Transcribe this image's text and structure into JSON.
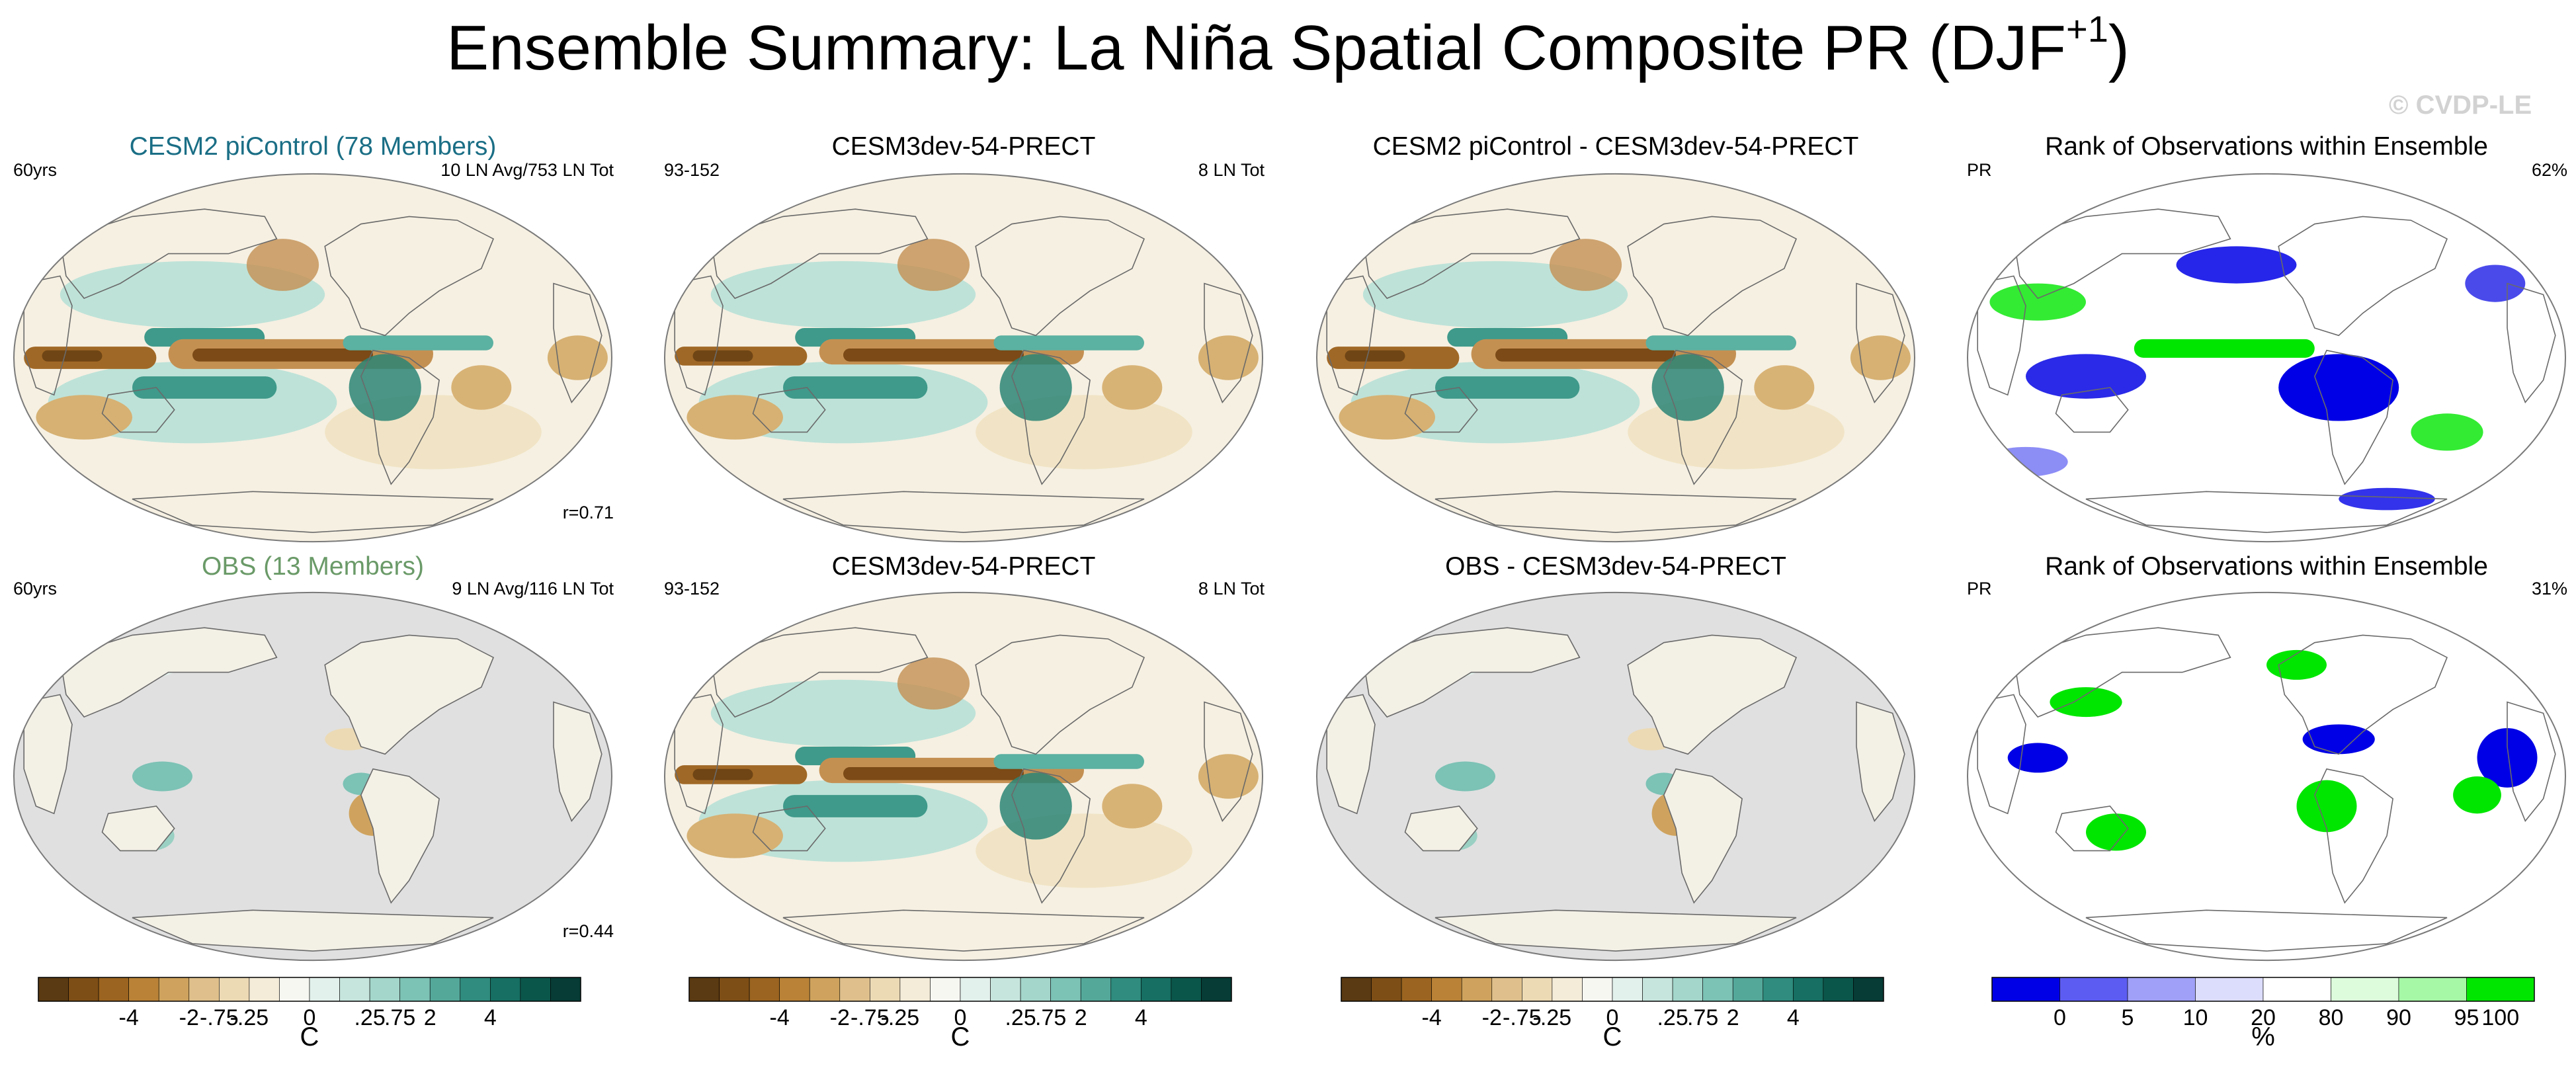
{
  "title": "Ensemble Summary: La Niña Spatial Composite PR (DJF",
  "title_sup": "+1",
  "watermark": "© CVDP-LE",
  "panels": [
    {
      "title": "CESM2 piControl (78 Members)",
      "title_color": "#1a6e85",
      "left": "60yrs",
      "right": "10 LN Avg/753 LN Tot",
      "bottom": "r=0.71",
      "kind": "comp"
    },
    {
      "title": "CESM3dev-54-PRECT",
      "left": "93-152",
      "right": "8 LN Tot",
      "kind": "model"
    },
    {
      "title": "CESM2 piControl - CESM3dev-54-PRECT",
      "left": "",
      "right": "",
      "kind": "comp"
    },
    {
      "title": "Rank of Observations within Ensemble",
      "left": "PR",
      "right": "62%",
      "kind": "rank1"
    },
    {
      "title": "OBS (13 Members)",
      "title_color": "#6a9a68",
      "left": "60yrs",
      "right": "9 LN Avg/116 LN Tot",
      "bottom": "r=0.44",
      "kind": "obs"
    },
    {
      "title": "CESM3dev-54-PRECT",
      "left": "93-152",
      "right": "8 LN Tot",
      "kind": "model"
    },
    {
      "title": "OBS - CESM3dev-54-PRECT",
      "left": "",
      "right": "",
      "kind": "obs"
    },
    {
      "title": "Rank of Observations within Ensemble",
      "left": "PR",
      "right": "31%",
      "kind": "rank2"
    }
  ],
  "colorbars": [
    {
      "labels": [
        "-4",
        "-2",
        "-.75",
        "-.25",
        "0",
        ".25",
        ".75",
        "2",
        "4"
      ],
      "units": "C"
    },
    {
      "labels": [
        "-4",
        "-2",
        "-.75",
        "-.25",
        "0",
        ".25",
        ".75",
        "2",
        "4"
      ],
      "units": "C"
    },
    {
      "labels": [
        "-4",
        "-2",
        "-.75",
        "-.25",
        "0",
        ".25",
        ".75",
        "2",
        "4"
      ],
      "units": "C"
    },
    {
      "labels": [
        "0",
        "5",
        "10",
        "20",
        "80",
        "90",
        "95",
        "100"
      ],
      "units": "%"
    }
  ],
  "chart_data": {
    "type": "heatmap",
    "title": "Ensemble Summary: La Niña Spatial Composite PR (DJF+1)",
    "variable": "PR",
    "composite_colorbar": {
      "levels": [
        "-4",
        "-2",
        "-.75",
        "-.25",
        "0",
        ".25",
        ".75",
        "2",
        "4"
      ],
      "units": "C",
      "colors": [
        "#5a3a12",
        "#7d4e16",
        "#9b6420",
        "#b98237",
        "#cfa35e",
        "#dfc08c",
        "#ecdab5",
        "#f4ecd8",
        "#f7f7f2",
        "#e3f1ec",
        "#c6e5dd",
        "#a4d6cb",
        "#7cc2b5",
        "#54a89a",
        "#2f8c7e",
        "#166f62",
        "#0b564b",
        "#063c35"
      ]
    },
    "rank_colorbar": {
      "levels": [
        "0",
        "5",
        "10",
        "20",
        "80",
        "90",
        "95",
        "100"
      ],
      "units": "%",
      "colors": [
        "#0000e6",
        "#5c5cf2",
        "#a0a0f8",
        "#dcdcfc",
        "#ffffff",
        "#dcfcdc",
        "#a6f8a6",
        "#00e600"
      ]
    },
    "panels": [
      {
        "title": "CESM2 piControl (78 Members)",
        "years": "60yrs",
        "la_nina": "10 LN Avg/753 LN Tot",
        "pattern_correlation": 0.71
      },
      {
        "title": "CESM3dev-54-PRECT",
        "years": "93-152",
        "la_nina": "8 LN Tot"
      },
      {
        "title": "CESM2 piControl - CESM3dev-54-PRECT"
      },
      {
        "title": "Rank of Observations within Ensemble",
        "variable": "PR",
        "percent": 62
      },
      {
        "title": "OBS (13 Members)",
        "years": "60yrs",
        "la_nina": "9 LN Avg/116 LN Tot",
        "pattern_correlation": 0.44
      },
      {
        "title": "CESM3dev-54-PRECT",
        "years": "93-152",
        "la_nina": "8 LN Tot"
      },
      {
        "title": "OBS - CESM3dev-54-PRECT"
      },
      {
        "title": "Rank of Observations within Ensemble",
        "variable": "PR",
        "percent": 31
      }
    ]
  }
}
